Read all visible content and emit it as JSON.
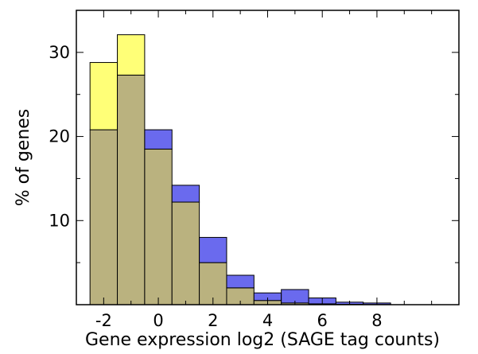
{
  "chart_data": {
    "type": "bar",
    "subtype": "overlapping-histogram",
    "title": "",
    "xlabel": "Gene expression log2 (SAGE tag counts)",
    "ylabel": "% of genes",
    "xlim": [
      -3,
      11
    ],
    "ylim": [
      0,
      35
    ],
    "bin_width": 1,
    "x_ticks": [
      -2,
      0,
      2,
      4,
      6,
      8
    ],
    "y_ticks": [
      10,
      20,
      30
    ],
    "grid": false,
    "legend": "none",
    "bin_starts": [
      -2.5,
      -1.5,
      -0.5,
      0.5,
      1.5,
      2.5,
      3.5,
      4.5,
      5.5,
      6.5,
      7.5
    ],
    "series": [
      {
        "color": "#6a6aee",
        "values": [
          20.8,
          27.3,
          20.8,
          14.2,
          8.0,
          3.5,
          1.4,
          1.8,
          0.8,
          0.3,
          0.2
        ]
      },
      {
        "color": "#ffff77",
        "values": [
          28.8,
          32.1,
          18.5,
          12.2,
          5.0,
          2.0,
          0.5,
          0.2,
          0.1,
          0.05,
          0.02
        ]
      }
    ],
    "overlap_color": "#bab27f"
  }
}
